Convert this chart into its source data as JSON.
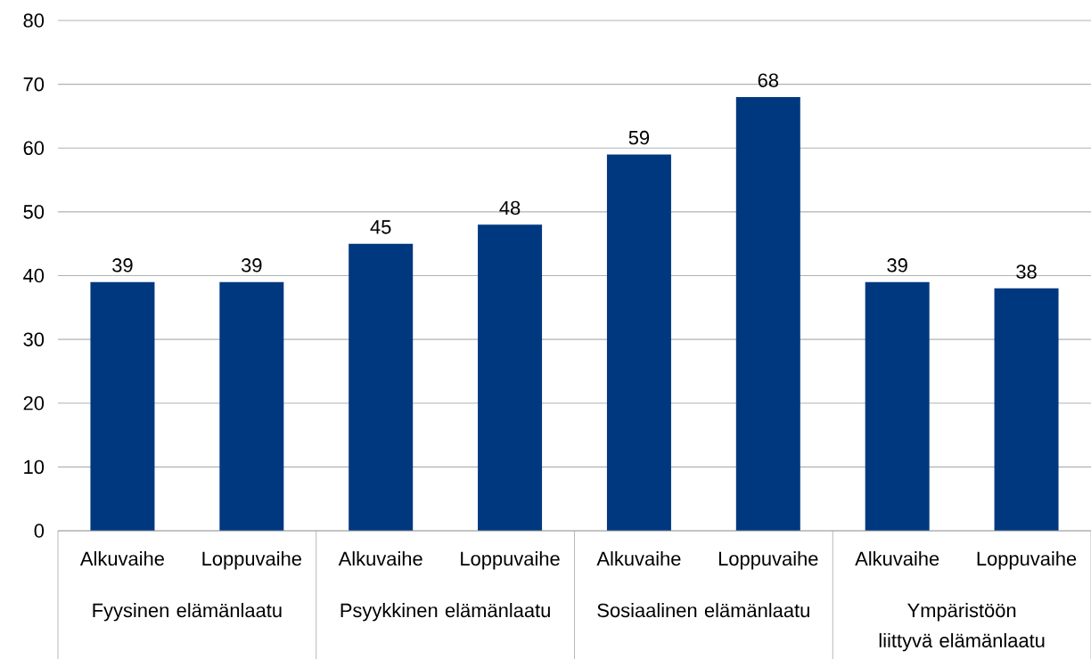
{
  "chart_data": {
    "type": "bar",
    "categories": [
      "Alkuvaihe",
      "Loppuvaihe",
      "Alkuvaihe",
      "Loppuvaihe",
      "Alkuvaihe",
      "Loppuvaihe",
      "Alkuvaihe",
      "Loppuvaihe"
    ],
    "values": [
      39,
      39,
      45,
      48,
      59,
      68,
      39,
      38
    ],
    "color": "#00387f",
    "ylim": [
      0,
      80
    ],
    "yticks": [
      0,
      10,
      20,
      30,
      40,
      50,
      60,
      70,
      80
    ],
    "grid": "y",
    "data_labels": true,
    "annotations": [
      "Fyysinen elämänlaatu",
      "Psyykkinen elämänlaatu",
      "Sosiaalinen elämänlaatu",
      "Ympäristöön liittyvä elämänlaatu"
    ]
  }
}
